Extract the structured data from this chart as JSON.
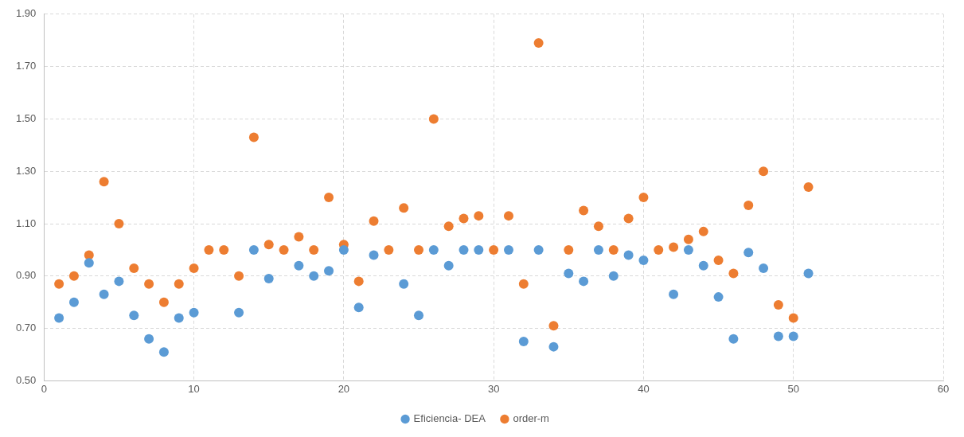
{
  "chart_data": {
    "type": "scatter",
    "x": [
      1,
      2,
      3,
      4,
      5,
      6,
      7,
      8,
      9,
      10,
      11,
      12,
      13,
      14,
      15,
      16,
      17,
      18,
      19,
      20,
      21,
      22,
      23,
      24,
      25,
      26,
      27,
      28,
      29,
      30,
      31,
      32,
      33,
      34,
      35,
      36,
      37,
      38,
      39,
      40,
      41,
      42,
      43,
      44,
      45,
      46,
      47,
      48,
      49,
      50,
      51
    ],
    "series": [
      {
        "name": "Eficiencia- DEA",
        "color": "#5b9bd5",
        "values": [
          0.74,
          0.8,
          0.95,
          0.83,
          0.88,
          0.75,
          0.66,
          0.61,
          0.74,
          0.76,
          null,
          null,
          0.76,
          1.0,
          0.89,
          null,
          0.94,
          0.9,
          0.92,
          1.0,
          0.78,
          0.98,
          null,
          0.87,
          0.75,
          1.0,
          0.94,
          1.0,
          1.0,
          null,
          1.0,
          0.65,
          1.0,
          0.63,
          0.91,
          0.88,
          1.0,
          0.9,
          0.98,
          0.96,
          null,
          0.83,
          1.0,
          0.94,
          0.82,
          0.66,
          0.99,
          0.93,
          0.67,
          0.67,
          0.91
        ]
      },
      {
        "name": "order-m",
        "color": "#ed7d31",
        "values": [
          0.87,
          0.9,
          0.98,
          1.26,
          1.1,
          0.93,
          0.87,
          0.8,
          0.87,
          0.93,
          1.0,
          1.0,
          0.9,
          1.43,
          1.02,
          1.0,
          1.05,
          1.0,
          1.2,
          1.02,
          0.88,
          1.11,
          1.0,
          1.16,
          1.0,
          1.5,
          1.09,
          1.12,
          1.13,
          1.0,
          1.13,
          0.87,
          1.79,
          0.71,
          1.0,
          1.15,
          1.09,
          1.0,
          1.12,
          1.2,
          1.0,
          1.01,
          1.04,
          1.07,
          0.96,
          0.91,
          1.17,
          1.3,
          0.79,
          0.74,
          1.24
        ]
      }
    ],
    "xlim": [
      0,
      60
    ],
    "xticks": [
      0,
      10,
      20,
      30,
      40,
      50,
      60
    ],
    "ylim": [
      0.5,
      1.9
    ],
    "yticks": [
      {
        "value": 0.5,
        "label": "0.50"
      },
      {
        "value": 0.7,
        "label": "0.70"
      },
      {
        "value": 0.9,
        "label": "0.90"
      },
      {
        "value": 1.1,
        "label": "1.10"
      },
      {
        "value": 1.3,
        "label": "1.30"
      },
      {
        "value": 1.5,
        "label": "1.50"
      },
      {
        "value": 1.7,
        "label": "1.70"
      },
      {
        "value": 1.9,
        "label": "1.90"
      }
    ],
    "grid": true,
    "legend": "bottom",
    "marker": "circle"
  }
}
